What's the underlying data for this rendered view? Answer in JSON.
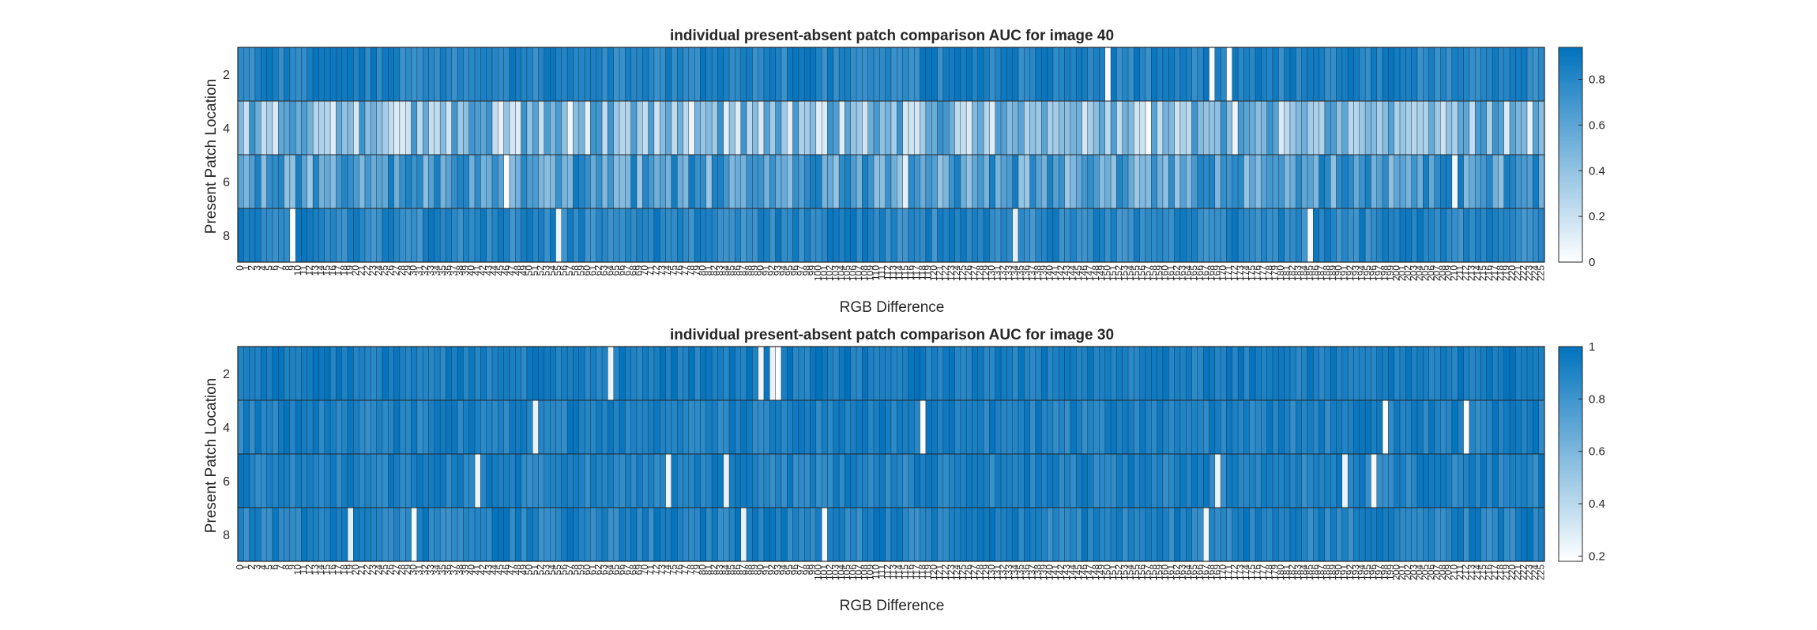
{
  "chart_data": [
    {
      "type": "heatmap",
      "title": "individual present-absent patch comparison AUC for image 40",
      "xlabel": "RGB Difference",
      "ylabel": "Present Patch Location",
      "x_range": [
        0,
        225
      ],
      "x_step": 1,
      "rows": [
        1,
        2,
        3,
        4
      ],
      "ytick_labels": [
        "2",
        "4",
        "6",
        "8"
      ],
      "colorbar": {
        "ticks": [
          0,
          0.2,
          0.4,
          0.6,
          0.8
        ],
        "clim": [
          0,
          0.94
        ]
      },
      "colormap": [
        "#ffffff",
        "#0072bd"
      ],
      "row_mean": [
        0.82,
        0.42,
        0.62,
        0.8
      ],
      "row_spread": [
        0.1,
        0.32,
        0.26,
        0.12
      ],
      "seed": 40
    },
    {
      "type": "heatmap",
      "title": "individual present-absent patch comparison AUC for image 30",
      "xlabel": "RGB Difference",
      "ylabel": "Present Patch Location",
      "x_range": [
        0,
        225
      ],
      "x_step": 1,
      "rows": [
        1,
        2,
        3,
        4
      ],
      "ytick_labels": [
        "2",
        "4",
        "6",
        "8"
      ],
      "colorbar": {
        "ticks": [
          0.2,
          0.4,
          0.6,
          0.8,
          1
        ],
        "clim": [
          0.18,
          1.0
        ]
      },
      "colormap": [
        "#ffffff",
        "#0072bd"
      ],
      "row_mean": [
        0.93,
        0.91,
        0.9,
        0.9
      ],
      "row_spread": [
        0.07,
        0.08,
        0.08,
        0.09
      ],
      "seed": 30
    }
  ]
}
